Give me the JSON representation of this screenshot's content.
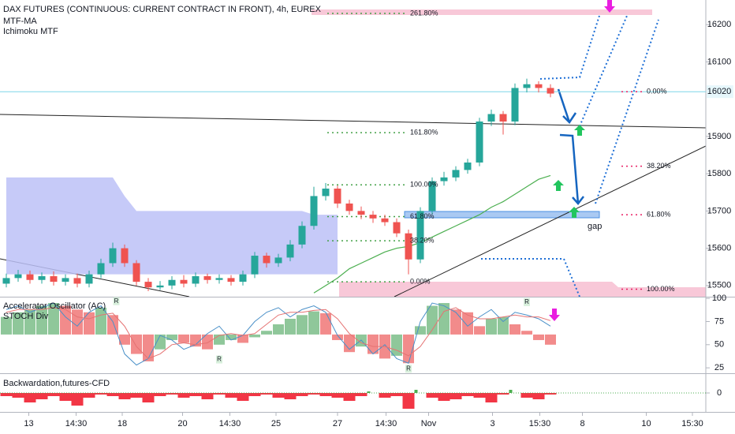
{
  "chart_data": [
    {
      "type": "candlestick",
      "title": "DAX FUTURES (CONTINUOUS: CURRENT CONTRACT IN FRONT), 4h, EUREX",
      "indicators": [
        "MTF-MA",
        "Ichimoku MTF"
      ],
      "up_color": "#26a69a",
      "down_color": "#ef5350",
      "open": [
        15505,
        15520,
        15530,
        15515,
        15525,
        15510,
        15520,
        15505,
        15530,
        15560,
        15600,
        15560,
        15510,
        15495,
        15500,
        15515,
        15505,
        15525,
        15515,
        15520,
        15510,
        15530,
        15580,
        15560,
        15575,
        15610,
        15660,
        15740,
        15760,
        15720,
        15700,
        15690,
        15680,
        15670,
        15640,
        15570,
        15700,
        15780,
        15790,
        15810,
        15830,
        15940,
        15960,
        15940,
        16030,
        16040,
        16030
      ],
      "high": [
        15532,
        15542,
        15540,
        15535,
        15538,
        15530,
        15532,
        15540,
        15572,
        15615,
        15610,
        15568,
        15520,
        15512,
        15525,
        15528,
        15535,
        15532,
        15530,
        15528,
        15540,
        15590,
        15588,
        15585,
        15622,
        15672,
        15765,
        15775,
        15768,
        15730,
        15712,
        15700,
        15690,
        15680,
        15650,
        15710,
        15790,
        15805,
        15820,
        15840,
        15950,
        15972,
        15968,
        16042,
        16055,
        16048,
        16040
      ],
      "low": [
        15495,
        15510,
        15505,
        15505,
        15500,
        15500,
        15495,
        15495,
        15520,
        15550,
        15550,
        15500,
        15485,
        15488,
        15490,
        15495,
        15496,
        15505,
        15505,
        15500,
        15500,
        15520,
        15548,
        15550,
        15565,
        15600,
        15650,
        15728,
        15708,
        15690,
        15678,
        15668,
        15660,
        15630,
        15530,
        15560,
        15690,
        15768,
        15780,
        15800,
        15820,
        15928,
        15905,
        15930,
        16018,
        16018,
        16005
      ],
      "close": [
        15520,
        15530,
        15515,
        15525,
        15510,
        15520,
        15505,
        15530,
        15560,
        15600,
        15560,
        15510,
        15495,
        15500,
        15515,
        15505,
        15525,
        15515,
        15520,
        15510,
        15530,
        15580,
        15560,
        15575,
        15610,
        15660,
        15740,
        15760,
        15720,
        15700,
        15690,
        15680,
        15670,
        15640,
        15570,
        15700,
        15780,
        15790,
        15810,
        15830,
        15940,
        15960,
        15940,
        16030,
        16040,
        16030,
        16015
      ],
      "cloud": {
        "color": "#bcc1f7",
        "upper": [
          15790,
          15790,
          15790,
          15790,
          15790,
          15790,
          15790,
          15790,
          15790,
          15790,
          15740,
          15700,
          15700,
          15700,
          15700,
          15700,
          15700,
          15700,
          15700,
          15700,
          15700,
          15700,
          15700,
          15700,
          15700,
          15700,
          15690,
          15690,
          15690,
          null,
          null,
          null,
          null,
          null,
          null,
          null,
          null,
          null,
          null,
          null,
          null,
          null,
          null,
          null,
          null,
          null,
          null
        ],
        "lower": [
          15530,
          15530,
          15530,
          15530,
          15530,
          15530,
          15530,
          15530,
          15530,
          15530,
          15530,
          15530,
          15530,
          15530,
          15530,
          15530,
          15530,
          15530,
          15530,
          15530,
          15530,
          15530,
          15530,
          15530,
          15530,
          15530,
          15530,
          15530,
          15530,
          null,
          null,
          null,
          null,
          null,
          null,
          null,
          null,
          null,
          null,
          null,
          null,
          null,
          null,
          null,
          null,
          null,
          null
        ]
      },
      "ma": {
        "color": "#4caf50",
        "values": [
          null,
          null,
          null,
          null,
          null,
          null,
          null,
          null,
          null,
          null,
          null,
          null,
          null,
          null,
          null,
          null,
          null,
          null,
          null,
          null,
          null,
          null,
          null,
          null,
          null,
          null,
          15480,
          15500,
          15520,
          15545,
          15560,
          15575,
          15590,
          15600,
          15605,
          15615,
          15630,
          15645,
          15660,
          15675,
          15690,
          15710,
          15725,
          15745,
          15765,
          15785,
          15795
        ]
      },
      "price_line": 16020,
      "price_line_color": "#7fd6e8",
      "fib_left_color": "#43a047",
      "fib_right_color": "#e91e63",
      "fib_left": [
        {
          "value": 16230,
          "label": "261.80%"
        },
        {
          "value": 15910,
          "label": "161.80%"
        },
        {
          "value": 15770,
          "label": "100.00%"
        },
        {
          "value": 15685,
          "label": "61.80%"
        },
        {
          "value": 15620,
          "label": "38.20%"
        },
        {
          "value": 15510,
          "label": "0.00%"
        }
      ],
      "fib_right": [
        {
          "value": 16020,
          "label": "0.00%"
        },
        {
          "value": 15820,
          "label": "38.20%"
        },
        {
          "value": 15690,
          "label": "61.80%"
        },
        {
          "value": 15490,
          "label": "100.00%"
        }
      ],
      "gap_label": "gap",
      "xlim": [
        -0.533,
        59.133
      ],
      "xticks": [
        {
          "value": 1.9,
          "label": "13"
        },
        {
          "value": 5.9,
          "label": "14:30"
        },
        {
          "value": 9.8,
          "label": "18"
        },
        {
          "value": 14.9,
          "label": "20"
        },
        {
          "value": 18.9,
          "label": "14:30"
        },
        {
          "value": 22.8,
          "label": "25"
        },
        {
          "value": 28,
          "label": "27"
        },
        {
          "value": 32.1,
          "label": "14:30"
        },
        {
          "value": 35.7,
          "label": "Nov"
        },
        {
          "value": 41.1,
          "label": "3"
        },
        {
          "value": 45.1,
          "label": "15:30"
        },
        {
          "value": 48.7,
          "label": "8"
        },
        {
          "value": 54.1,
          "label": "10"
        },
        {
          "value": 58,
          "label": "15:30"
        }
      ],
      "ylim": [
        15470,
        16266
      ],
      "yticks": [
        16200,
        16100,
        15900,
        15800,
        15700,
        15600,
        15500
      ]
    },
    {
      "type": "bar",
      "title": "Accelerator Oscillator (AC)",
      "subtitle": "STOCH Div",
      "base": 61,
      "up_color": "#8fc79a",
      "down_color": "#f28b8b",
      "values": [
        80,
        85,
        88,
        92,
        95,
        92,
        88,
        85,
        90,
        82,
        50,
        40,
        32,
        45,
        55,
        52,
        48,
        45,
        50,
        55,
        52,
        58,
        65,
        72,
        78,
        82,
        86,
        84,
        55,
        42,
        48,
        40,
        35,
        38,
        30,
        70,
        92,
        95,
        88,
        85,
        70,
        78,
        80,
        72,
        65,
        55,
        50
      ],
      "lines": [
        {
          "color": "#4a90c8",
          "values": [
            88,
            92,
            85,
            90,
            95,
            80,
            70,
            85,
            92,
            75,
            40,
            28,
            35,
            60,
            55,
            45,
            50,
            62,
            70,
            55,
            60,
            75,
            85,
            90,
            80,
            88,
            92,
            85,
            60,
            45,
            55,
            40,
            50,
            35,
            30,
            75,
            95,
            92,
            85,
            70,
            80,
            88,
            75,
            85,
            82,
            78,
            70
          ]
        },
        {
          "color": "#e57373",
          "values": [
            85,
            88,
            88,
            88,
            90,
            88,
            80,
            78,
            82,
            84,
            70,
            48,
            35,
            40,
            50,
            52,
            50,
            52,
            60,
            62,
            60,
            62,
            72,
            82,
            85,
            85,
            87,
            88,
            78,
            62,
            52,
            48,
            48,
            44,
            38,
            48,
            66,
            86,
            90,
            82,
            78,
            78,
            80,
            82,
            80,
            80,
            76
          ]
        }
      ],
      "signals": [
        {
          "x": 9.3,
          "y": 97,
          "label": "R"
        },
        {
          "x": 18,
          "y": 34,
          "label": "R"
        },
        {
          "x": 34,
          "y": 24,
          "label": "R"
        },
        {
          "x": 44,
          "y": 96,
          "label": "R"
        }
      ],
      "ylim": [
        20,
        101
      ],
      "yticks": [
        100,
        75,
        50,
        25
      ]
    },
    {
      "type": "area",
      "title": "Backwardation,futures-CFD",
      "up_color": "#4caf50",
      "down_color": "#f23645",
      "values": [
        -2,
        -3,
        -6,
        -4,
        -2,
        -5,
        -8,
        -3,
        -1,
        -2,
        -4,
        -3,
        -6,
        -2,
        -1,
        -3,
        -2,
        -4,
        -1,
        -3,
        -5,
        -2,
        -1,
        -3,
        -4,
        -2,
        -1,
        -2,
        -3,
        -5,
        -2,
        1,
        -3,
        -2,
        -10,
        2,
        -3,
        -5,
        -4,
        -2,
        -3,
        -6,
        -1,
        2,
        -3,
        -4,
        -1
      ],
      "ylim": [
        -12,
        12
      ],
      "yticks": [
        0
      ]
    }
  ]
}
